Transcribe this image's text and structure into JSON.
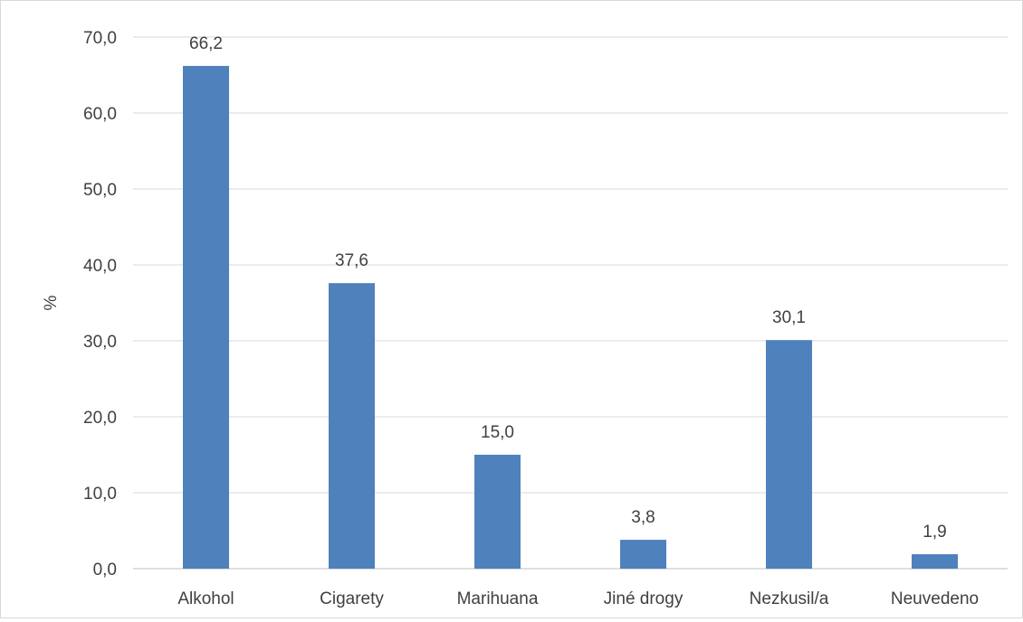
{
  "chart_data": {
    "type": "bar",
    "title": "",
    "xlabel": "",
    "ylabel": "%",
    "ylim": [
      0,
      70
    ],
    "ytick_step": 10,
    "ytick_labels": [
      "0,0",
      "10,0",
      "20,0",
      "30,0",
      "40,0",
      "50,0",
      "60,0",
      "70,0"
    ],
    "grid": true,
    "legend": "none",
    "categories": [
      "Alkohol",
      "Cigarety",
      "Marihuana",
      "Jiné drogy",
      "Nezkusil/a",
      "Neuvedeno"
    ],
    "values": [
      66.2,
      37.6,
      15.0,
      3.8,
      30.1,
      1.9
    ],
    "value_labels": [
      "66,2",
      "37,6",
      "15,0",
      "3,8",
      "30,1",
      "1,9"
    ],
    "bar_color": "#4f81bd"
  }
}
